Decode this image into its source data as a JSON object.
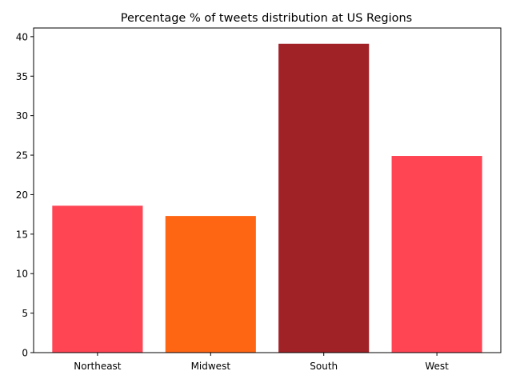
{
  "chart_data": {
    "type": "bar",
    "title": "Percentage % of tweets distribution at US Regions",
    "xlabel": "",
    "ylabel": "",
    "categories": [
      "Northeast",
      "Midwest",
      "South",
      "West"
    ],
    "values": [
      18.6,
      17.3,
      39.1,
      24.9
    ],
    "colors": [
      "#ff4454",
      "#ff6614",
      "#a02226",
      "#ff4454"
    ],
    "ylim": [
      0,
      41.1
    ],
    "yticks": [
      0,
      5,
      10,
      15,
      20,
      25,
      30,
      35,
      40
    ],
    "grid": false,
    "legend": "none"
  }
}
